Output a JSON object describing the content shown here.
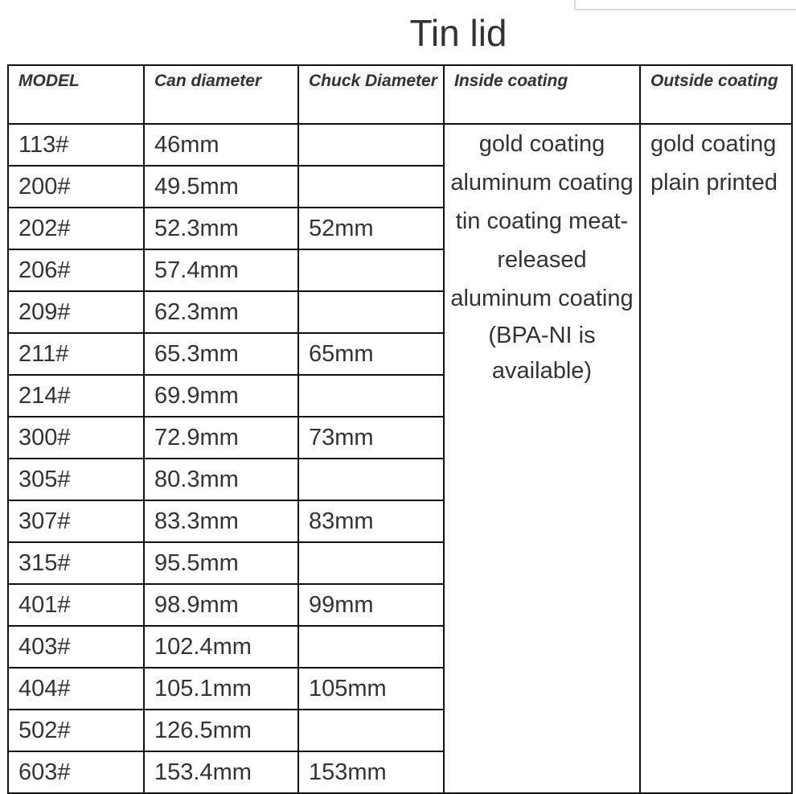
{
  "title": "Tin lid",
  "headers": [
    "MODEL",
    "Can diameter",
    "Chuck Diameter",
    "Inside coating",
    "Outside coating"
  ],
  "rows": [
    {
      "model": "113#",
      "can": "46mm",
      "chuck": ""
    },
    {
      "model": "200#",
      "can": "49.5mm",
      "chuck": ""
    },
    {
      "model": "202#",
      "can": "52.3mm",
      "chuck": "52mm"
    },
    {
      "model": "206#",
      "can": "57.4mm",
      "chuck": ""
    },
    {
      "model": "209#",
      "can": "62.3mm",
      "chuck": ""
    },
    {
      "model": "211#",
      "can": "65.3mm",
      "chuck": "65mm"
    },
    {
      "model": "214#",
      "can": "69.9mm",
      "chuck": ""
    },
    {
      "model": "300#",
      "can": "72.9mm",
      "chuck": "73mm"
    },
    {
      "model": "305#",
      "can": "80.3mm",
      "chuck": ""
    },
    {
      "model": "307#",
      "can": "83.3mm",
      "chuck": "83mm"
    },
    {
      "model": "315#",
      "can": "95.5mm",
      "chuck": ""
    },
    {
      "model": "401#",
      "can": "98.9mm",
      "chuck": "99mm"
    },
    {
      "model": "403#",
      "can": "102.4mm",
      "chuck": ""
    },
    {
      "model": "404#",
      "can": "105.1mm",
      "chuck": "105mm"
    },
    {
      "model": "502#",
      "can": "126.5mm",
      "chuck": ""
    },
    {
      "model": "603#",
      "can": "153.4mm",
      "chuck": "153mm"
    }
  ],
  "inside_coating": "gold coating aluminum coating tin coating meat-released aluminum coating",
  "inside_note": "(BPA-NI is available)",
  "outside_coating": "gold coating plain printed"
}
